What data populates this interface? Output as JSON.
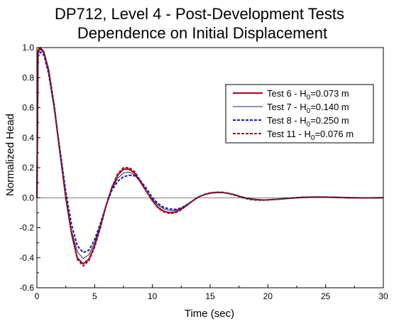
{
  "chart_data": {
    "type": "line",
    "title_lines": [
      "DP712, Level 4 - Post-Development Tests",
      "Dependence on Initial Displacement"
    ],
    "xlabel": "Time (sec)",
    "ylabel": "Normalized Head",
    "xlim": [
      0,
      30
    ],
    "ylim": [
      -0.6,
      1.0
    ],
    "x_ticks": [
      "0",
      "5",
      "10",
      "15",
      "20",
      "25",
      "30"
    ],
    "y_ticks": [
      "-0.6",
      "-0.4",
      "-0.2",
      "0.0",
      "0.2",
      "0.4",
      "0.6",
      "0.8",
      "1.0"
    ],
    "grid": false,
    "legend_position": "top-right",
    "series": [
      {
        "name_parts": [
          "Test 6 - H",
          "0",
          "=0.073 m"
        ],
        "color": "#b3001b",
        "style": "solid",
        "width": 2,
        "points": [
          [
            0,
            0
          ],
          [
            0.1,
            0.98
          ],
          [
            0.3,
            1.0
          ],
          [
            0.6,
            0.97
          ],
          [
            1.0,
            0.85
          ],
          [
            1.5,
            0.6
          ],
          [
            2.0,
            0.3
          ],
          [
            2.5,
            0.0
          ],
          [
            3.0,
            -0.24
          ],
          [
            3.5,
            -0.4
          ],
          [
            4.0,
            -0.44
          ],
          [
            4.5,
            -0.41
          ],
          [
            5.0,
            -0.32
          ],
          [
            5.5,
            -0.19
          ],
          [
            6.0,
            -0.05
          ],
          [
            6.5,
            0.07
          ],
          [
            7.0,
            0.15
          ],
          [
            7.5,
            0.19
          ],
          [
            8.0,
            0.19
          ],
          [
            8.5,
            0.16
          ],
          [
            9.0,
            0.1
          ],
          [
            9.5,
            0.04
          ],
          [
            10.0,
            -0.02
          ],
          [
            10.5,
            -0.065
          ],
          [
            11.0,
            -0.09
          ],
          [
            11.5,
            -0.1
          ],
          [
            12.0,
            -0.095
          ],
          [
            12.5,
            -0.075
          ],
          [
            13.0,
            -0.05
          ],
          [
            13.5,
            -0.02
          ],
          [
            14.0,
            0.005
          ],
          [
            14.5,
            0.02
          ],
          [
            15.0,
            0.03
          ],
          [
            15.5,
            0.035
          ],
          [
            16.0,
            0.035
          ],
          [
            16.5,
            0.03
          ],
          [
            17.0,
            0.022
          ],
          [
            17.5,
            0.01
          ],
          [
            18.0,
            0.0
          ],
          [
            18.5,
            -0.008
          ],
          [
            19.0,
            -0.012
          ],
          [
            19.5,
            -0.015
          ],
          [
            20.0,
            -0.014
          ],
          [
            21.0,
            -0.009
          ],
          [
            22.0,
            -0.003
          ],
          [
            23.0,
            0.002
          ],
          [
            24.0,
            0.004
          ],
          [
            25.0,
            0.004
          ],
          [
            26.0,
            0.002
          ],
          [
            27.0,
            0.0
          ],
          [
            28.0,
            -0.001
          ],
          [
            29.0,
            -0.001
          ],
          [
            30.0,
            0.0
          ]
        ]
      },
      {
        "name_parts": [
          "Test 7 - H",
          "0",
          "=0.140 m"
        ],
        "color": "#1a237e",
        "style": "solid",
        "width": 1,
        "points": [
          [
            0,
            0
          ],
          [
            0.1,
            0.96
          ],
          [
            0.3,
            0.99
          ],
          [
            0.6,
            0.96
          ],
          [
            1.0,
            0.84
          ],
          [
            1.5,
            0.6
          ],
          [
            2.0,
            0.3
          ],
          [
            2.5,
            0.0
          ],
          [
            3.0,
            -0.22
          ],
          [
            3.5,
            -0.36
          ],
          [
            4.0,
            -0.405
          ],
          [
            4.5,
            -0.38
          ],
          [
            5.0,
            -0.3
          ],
          [
            5.5,
            -0.18
          ],
          [
            6.0,
            -0.05
          ],
          [
            6.5,
            0.06
          ],
          [
            7.0,
            0.13
          ],
          [
            7.5,
            0.165
          ],
          [
            8.0,
            0.17
          ],
          [
            8.5,
            0.15
          ],
          [
            9.0,
            0.1
          ],
          [
            9.5,
            0.04
          ],
          [
            10.0,
            -0.01
          ],
          [
            10.5,
            -0.05
          ],
          [
            11.0,
            -0.075
          ],
          [
            11.5,
            -0.085
          ],
          [
            12.0,
            -0.085
          ],
          [
            12.5,
            -0.07
          ],
          [
            13.0,
            -0.045
          ],
          [
            13.5,
            -0.02
          ],
          [
            14.0,
            0.005
          ],
          [
            14.5,
            0.02
          ],
          [
            15.0,
            0.03
          ],
          [
            15.5,
            0.033
          ],
          [
            16.0,
            0.034
          ],
          [
            16.5,
            0.03
          ],
          [
            17.0,
            0.022
          ],
          [
            17.5,
            0.012
          ],
          [
            18.0,
            0.0
          ],
          [
            18.5,
            -0.008
          ],
          [
            19.0,
            -0.012
          ],
          [
            19.5,
            -0.014
          ],
          [
            20.0,
            -0.013
          ],
          [
            21.0,
            -0.008
          ],
          [
            22.0,
            -0.003
          ],
          [
            23.0,
            0.002
          ],
          [
            24.0,
            0.004
          ],
          [
            25.0,
            0.004
          ],
          [
            26.0,
            0.002
          ],
          [
            27.0,
            0.0
          ],
          [
            28.0,
            -0.001
          ],
          [
            29.0,
            -0.001
          ],
          [
            30.0,
            0.0
          ]
        ]
      },
      {
        "name_parts": [
          "Test 8 - H",
          "0",
          "=0.250 m"
        ],
        "color": "#1a1aa6",
        "style": "dashed",
        "width": 2,
        "points": [
          [
            0,
            0
          ],
          [
            0.1,
            0.94
          ],
          [
            0.3,
            0.97
          ],
          [
            0.6,
            0.95
          ],
          [
            1.0,
            0.83
          ],
          [
            1.5,
            0.6
          ],
          [
            2.0,
            0.32
          ],
          [
            2.5,
            0.04
          ],
          [
            3.0,
            -0.18
          ],
          [
            3.5,
            -0.32
          ],
          [
            4.0,
            -0.365
          ],
          [
            4.5,
            -0.35
          ],
          [
            5.0,
            -0.28
          ],
          [
            5.5,
            -0.17
          ],
          [
            6.0,
            -0.05
          ],
          [
            6.5,
            0.05
          ],
          [
            7.0,
            0.11
          ],
          [
            7.5,
            0.14
          ],
          [
            8.0,
            0.15
          ],
          [
            8.5,
            0.145
          ],
          [
            9.0,
            0.11
          ],
          [
            9.5,
            0.06
          ],
          [
            10.0,
            0.0
          ],
          [
            10.5,
            -0.04
          ],
          [
            11.0,
            -0.065
          ],
          [
            11.5,
            -0.075
          ],
          [
            12.0,
            -0.078
          ],
          [
            12.5,
            -0.068
          ],
          [
            13.0,
            -0.045
          ],
          [
            13.5,
            -0.02
          ],
          [
            14.0,
            0.005
          ],
          [
            14.5,
            0.022
          ],
          [
            15.0,
            0.032
          ],
          [
            15.5,
            0.036
          ],
          [
            16.0,
            0.036
          ],
          [
            16.5,
            0.03
          ],
          [
            17.0,
            0.02
          ],
          [
            17.5,
            0.008
          ],
          [
            18.0,
            -0.004
          ],
          [
            18.5,
            -0.012
          ],
          [
            19.0,
            -0.016
          ],
          [
            19.5,
            -0.017
          ],
          [
            20.0,
            -0.015
          ],
          [
            21.0,
            -0.009
          ],
          [
            22.0,
            -0.002
          ],
          [
            23.0,
            0.003
          ],
          [
            24.0,
            0.005
          ],
          [
            25.0,
            0.004
          ],
          [
            26.0,
            0.002
          ],
          [
            27.0,
            0.0
          ],
          [
            28.0,
            -0.001
          ],
          [
            29.0,
            -0.001
          ],
          [
            30.0,
            0.0
          ]
        ]
      },
      {
        "name_parts": [
          "Test 11 - H",
          "0",
          "=0.076 m"
        ],
        "color": "#8b1a1a",
        "style": "dashed",
        "width": 2,
        "points": [
          [
            0,
            0
          ],
          [
            0.1,
            0.99
          ],
          [
            0.3,
            1.0
          ],
          [
            0.6,
            0.97
          ],
          [
            1.0,
            0.86
          ],
          [
            1.5,
            0.62
          ],
          [
            2.0,
            0.3
          ],
          [
            2.5,
            0.0
          ],
          [
            3.0,
            -0.24
          ],
          [
            3.5,
            -0.41
          ],
          [
            4.0,
            -0.455
          ],
          [
            4.5,
            -0.42
          ],
          [
            5.0,
            -0.33
          ],
          [
            5.5,
            -0.2
          ],
          [
            6.0,
            -0.05
          ],
          [
            6.5,
            0.07
          ],
          [
            7.0,
            0.16
          ],
          [
            7.5,
            0.2
          ],
          [
            8.0,
            0.2
          ],
          [
            8.5,
            0.17
          ],
          [
            9.0,
            0.11
          ],
          [
            9.5,
            0.04
          ],
          [
            10.0,
            -0.02
          ],
          [
            10.5,
            -0.07
          ],
          [
            11.0,
            -0.095
          ],
          [
            11.5,
            -0.105
          ],
          [
            12.0,
            -0.1
          ],
          [
            12.5,
            -0.08
          ],
          [
            13.0,
            -0.05
          ],
          [
            13.5,
            -0.02
          ],
          [
            14.0,
            0.005
          ],
          [
            14.5,
            0.022
          ],
          [
            15.0,
            0.032
          ],
          [
            15.5,
            0.036
          ],
          [
            16.0,
            0.036
          ],
          [
            16.5,
            0.03
          ],
          [
            17.0,
            0.022
          ],
          [
            17.5,
            0.01
          ],
          [
            18.0,
            -0.002
          ],
          [
            18.5,
            -0.01
          ],
          [
            19.0,
            -0.014
          ],
          [
            19.5,
            -0.016
          ],
          [
            20.0,
            -0.015
          ],
          [
            21.0,
            -0.009
          ],
          [
            22.0,
            -0.003
          ],
          [
            23.0,
            0.002
          ],
          [
            24.0,
            0.004
          ],
          [
            25.0,
            0.004
          ],
          [
            26.0,
            0.002
          ],
          [
            27.0,
            0.0
          ],
          [
            28.0,
            -0.001
          ],
          [
            29.0,
            -0.001
          ],
          [
            30.0,
            0.0
          ]
        ]
      }
    ]
  }
}
